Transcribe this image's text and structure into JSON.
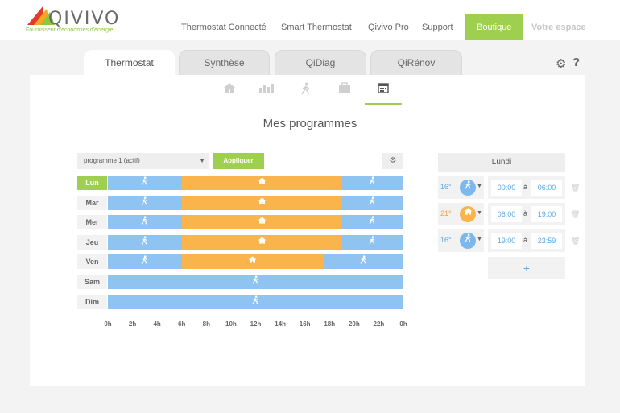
{
  "brand": {
    "name": "QIVIVO",
    "tagline": "Fournisseur d'économies d'énergie"
  },
  "nav": [
    {
      "label": "Thermostat Connecté"
    },
    {
      "label": "Smart Thermostat"
    },
    {
      "label": "Qivivo Pro"
    },
    {
      "label": "Support"
    },
    {
      "label": "Boutique"
    },
    {
      "label": "Votre espace"
    }
  ],
  "tabs": [
    {
      "label": "Thermostat",
      "active": true
    },
    {
      "label": "Synthèse"
    },
    {
      "label": "QiDiag"
    },
    {
      "label": "QiRénov"
    }
  ],
  "subnav_icons": [
    "home-icon",
    "chart-icon",
    "walking-icon",
    "briefcase-icon",
    "calendar-icon"
  ],
  "section_title": "Mes programmes",
  "program": {
    "selected": "programme 1 (actif)",
    "apply_label": "Appliquer"
  },
  "schedule": {
    "days": [
      {
        "label": "Lun",
        "active": true,
        "segments": [
          {
            "mode": "eco",
            "start": 0,
            "end": 6
          },
          {
            "mode": "comfort",
            "start": 6,
            "end": 19
          },
          {
            "mode": "eco",
            "start": 19,
            "end": 24
          }
        ]
      },
      {
        "label": "Mar",
        "segments": [
          {
            "mode": "eco",
            "start": 0,
            "end": 6
          },
          {
            "mode": "comfort",
            "start": 6,
            "end": 19
          },
          {
            "mode": "eco",
            "start": 19,
            "end": 24
          }
        ]
      },
      {
        "label": "Mer",
        "segments": [
          {
            "mode": "eco",
            "start": 0,
            "end": 6
          },
          {
            "mode": "comfort",
            "start": 6,
            "end": 19
          },
          {
            "mode": "eco",
            "start": 19,
            "end": 24
          }
        ]
      },
      {
        "label": "Jeu",
        "segments": [
          {
            "mode": "eco",
            "start": 0,
            "end": 6
          },
          {
            "mode": "comfort",
            "start": 6,
            "end": 19
          },
          {
            "mode": "eco",
            "start": 19,
            "end": 24
          }
        ]
      },
      {
        "label": "Ven",
        "segments": [
          {
            "mode": "eco",
            "start": 0,
            "end": 6
          },
          {
            "mode": "comfort",
            "start": 6,
            "end": 17.5
          },
          {
            "mode": "eco",
            "start": 17.5,
            "end": 24
          }
        ]
      },
      {
        "label": "Sam",
        "segments": [
          {
            "mode": "eco",
            "start": 0,
            "end": 24
          }
        ]
      },
      {
        "label": "Dim",
        "segments": [
          {
            "mode": "eco",
            "start": 0,
            "end": 24
          }
        ]
      }
    ],
    "hours": [
      "0h",
      "2h",
      "4h",
      "6h",
      "8h",
      "10h",
      "12h",
      "14h",
      "16h",
      "18h",
      "20h",
      "22h",
      "0h"
    ]
  },
  "day_detail": {
    "title": "Lundi",
    "a_label": "à",
    "slots": [
      {
        "temp": "16°",
        "mode": "eco",
        "start": "00:00",
        "end": "06:00"
      },
      {
        "temp": "21°",
        "mode": "comfort",
        "start": "06:00",
        "end": "19:00"
      },
      {
        "temp": "16°",
        "mode": "eco",
        "start": "19:00",
        "end": "23:59"
      }
    ],
    "add_label": "+"
  },
  "colors": {
    "eco": "#8fc3f2",
    "comfort": "#f9b54c",
    "accent": "#9ecf4f",
    "eco_text": "#5aa9e6",
    "comfort_text": "#f2a33a"
  }
}
